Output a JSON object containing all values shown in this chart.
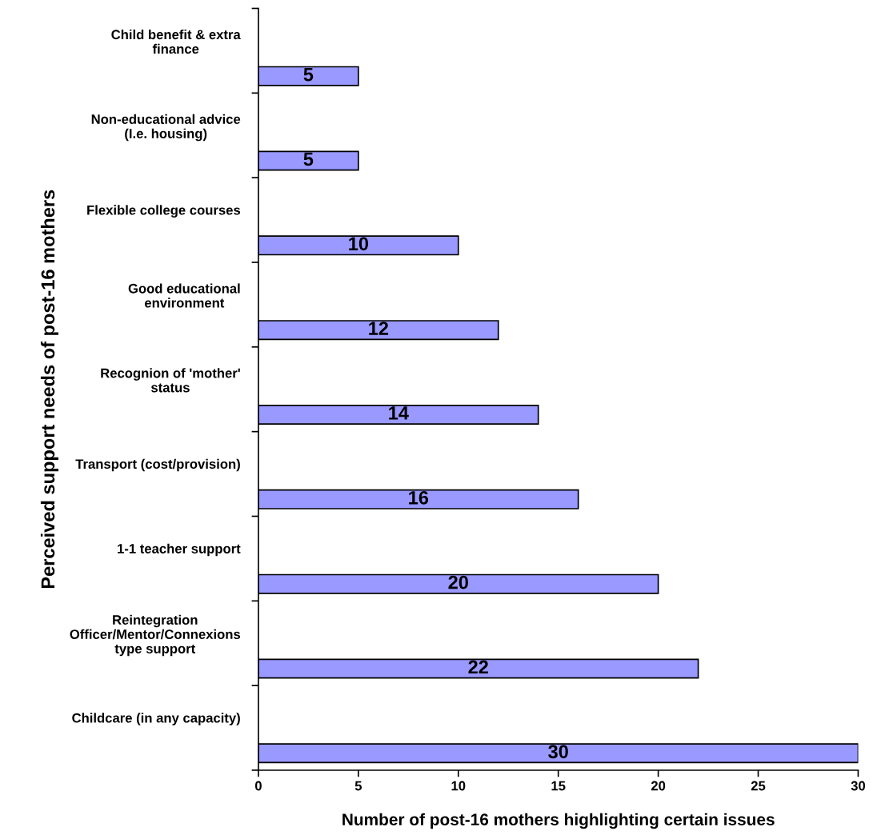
{
  "chart_data": {
    "type": "bar",
    "orientation": "horizontal",
    "xlabel": "Number of post-16 mothers highlighting certain issues",
    "ylabel": "Perceived support needs of post-16 mothers",
    "categories": [
      "Child benefit & extra\nfinance",
      "Non-educational advice\n(I.e. housing)",
      "Flexible college courses",
      "Good educational\nenvironment",
      "Recognion of 'mother'\nstatus",
      "Transport (cost/provision)",
      "1-1 teacher support",
      "Reintegration\nOfficer/Mentor/Connexions\ntype support",
      "Childcare (in any capacity)"
    ],
    "values": [
      5,
      5,
      10,
      12,
      14,
      16,
      20,
      22,
      30
    ],
    "color": "#9999ff",
    "xlim": [
      0,
      30
    ],
    "xticks": [
      0,
      5,
      10,
      15,
      20,
      25,
      30
    ],
    "data_labels": true,
    "grid": false,
    "legend": false
  }
}
